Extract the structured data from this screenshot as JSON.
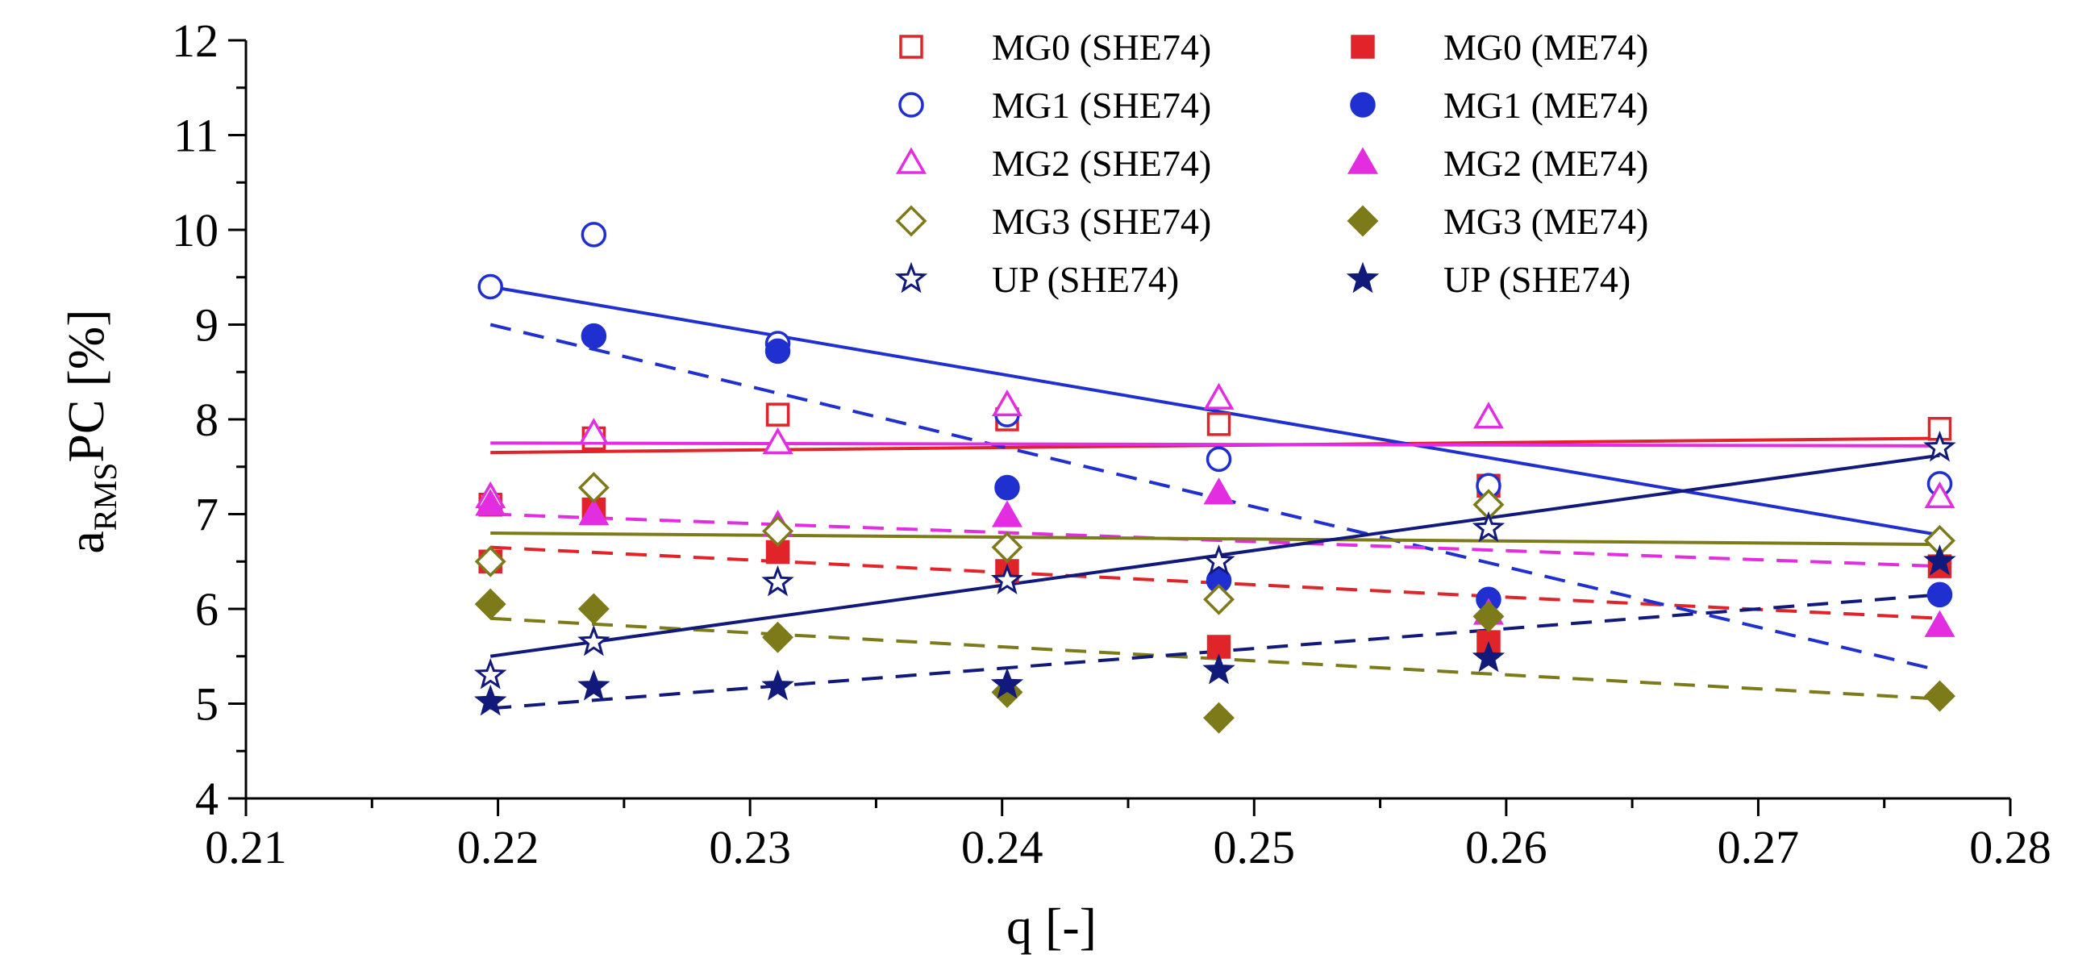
{
  "chart_data": {
    "type": "scatter",
    "title": "",
    "xlabel": "q [-]",
    "ylabel_main": "a",
    "ylabel_sub": "RMS",
    "ylabel_rest": "PC [%]",
    "xlim": [
      0.21,
      0.28
    ],
    "ylim": [
      4,
      12
    ],
    "x_ticks": [
      "0.21",
      "0.22",
      "0.23",
      "0.24",
      "0.25",
      "0.26",
      "0.27",
      "0.28"
    ],
    "y_ticks": [
      "4",
      "5",
      "6",
      "7",
      "8",
      "9",
      "10",
      "11",
      "12"
    ],
    "grid": false,
    "legend_position": "top-right",
    "series": [
      {
        "name": "MG0 (SHE74)",
        "color": "#e0242a",
        "marker": "square",
        "filled": false,
        "line": "solid",
        "x": [
          0.2197,
          0.2238,
          0.2311,
          0.2402,
          0.2486,
          0.2593,
          0.2772
        ],
        "y": [
          7.1,
          7.8,
          8.05,
          8.0,
          7.95,
          7.3,
          7.9
        ],
        "fit": [
          7.65,
          7.8
        ]
      },
      {
        "name": "MG0 (ME74)",
        "color": "#e0242a",
        "marker": "square",
        "filled": true,
        "line": "dashed",
        "x": [
          0.2197,
          0.2238,
          0.2311,
          0.2402,
          0.2486,
          0.2593,
          0.2772
        ],
        "y": [
          6.5,
          7.05,
          6.6,
          6.4,
          5.6,
          5.65,
          6.45
        ],
        "fit": [
          6.65,
          5.9
        ]
      },
      {
        "name": "MG1 (SHE74)",
        "color": "#1f2fd0",
        "marker": "circle",
        "filled": false,
        "line": "solid",
        "x": [
          0.2197,
          0.2238,
          0.2311,
          0.2402,
          0.2486,
          0.2593,
          0.2772
        ],
        "y": [
          9.4,
          9.95,
          8.8,
          8.05,
          7.58,
          7.3,
          7.32
        ],
        "fit": [
          9.4,
          6.78
        ]
      },
      {
        "name": "MG1 (ME74)",
        "color": "#1f2fd0",
        "marker": "circle",
        "filled": true,
        "line": "dashed",
        "x": [
          0.2238,
          0.2311,
          0.2402,
          0.2486,
          0.2593,
          0.2772
        ],
        "y": [
          8.88,
          8.72,
          7.28,
          6.3,
          6.1,
          6.15
        ],
        "fit": [
          9.0,
          5.35
        ]
      },
      {
        "name": "MG2 (SHE74)",
        "color": "#e22ee0",
        "marker": "triangle",
        "filled": false,
        "line": "solid",
        "x": [
          0.2197,
          0.2238,
          0.2311,
          0.2402,
          0.2486,
          0.2593,
          0.2772
        ],
        "y": [
          7.18,
          7.85,
          7.75,
          8.15,
          8.22,
          8.02,
          7.18
        ],
        "fit": [
          7.75,
          7.72
        ]
      },
      {
        "name": "MG2 (ME74)",
        "color": "#e22ee0",
        "marker": "triangle",
        "filled": true,
        "line": "dashed",
        "x": [
          0.2197,
          0.2238,
          0.2311,
          0.2402,
          0.2486,
          0.2593,
          0.2772
        ],
        "y": [
          7.1,
          7.0,
          6.88,
          6.98,
          7.22,
          5.95,
          5.82
        ],
        "fit": [
          7.0,
          6.45
        ]
      },
      {
        "name": "MG3 (SHE74)",
        "color": "#7d7a1a",
        "marker": "diamond",
        "filled": false,
        "line": "solid",
        "x": [
          0.2197,
          0.2238,
          0.2311,
          0.2402,
          0.2486,
          0.2593,
          0.2772
        ],
        "y": [
          6.5,
          7.28,
          6.82,
          6.65,
          6.1,
          7.1,
          6.72
        ],
        "fit": [
          6.8,
          6.68
        ]
      },
      {
        "name": "MG3 (ME74)",
        "color": "#7d7a1a",
        "marker": "diamond",
        "filled": true,
        "line": "dashed",
        "x": [
          0.2197,
          0.2238,
          0.2311,
          0.2402,
          0.2486,
          0.2593,
          0.2772
        ],
        "y": [
          6.05,
          6.0,
          5.7,
          5.12,
          4.85,
          5.92,
          5.08
        ],
        "fit": [
          5.9,
          5.05
        ]
      },
      {
        "name": "UP (SHE74)",
        "color": "#111a7a",
        "marker": "star",
        "filled": false,
        "line": "solid",
        "x": [
          0.2197,
          0.2238,
          0.2311,
          0.2402,
          0.2486,
          0.2593,
          0.2772
        ],
        "y": [
          5.3,
          5.65,
          6.28,
          6.3,
          6.5,
          6.85,
          7.7
        ],
        "fit": [
          5.5,
          7.62
        ]
      },
      {
        "name": "UP (SHE74)",
        "color": "#111a7a",
        "marker": "star",
        "filled": true,
        "line": "dashed",
        "x": [
          0.2197,
          0.2238,
          0.2311,
          0.2402,
          0.2486,
          0.2593,
          0.2772
        ],
        "y": [
          5.02,
          5.18,
          5.18,
          5.2,
          5.35,
          5.48,
          6.5
        ],
        "fit": [
          4.95,
          6.15
        ]
      }
    ]
  }
}
